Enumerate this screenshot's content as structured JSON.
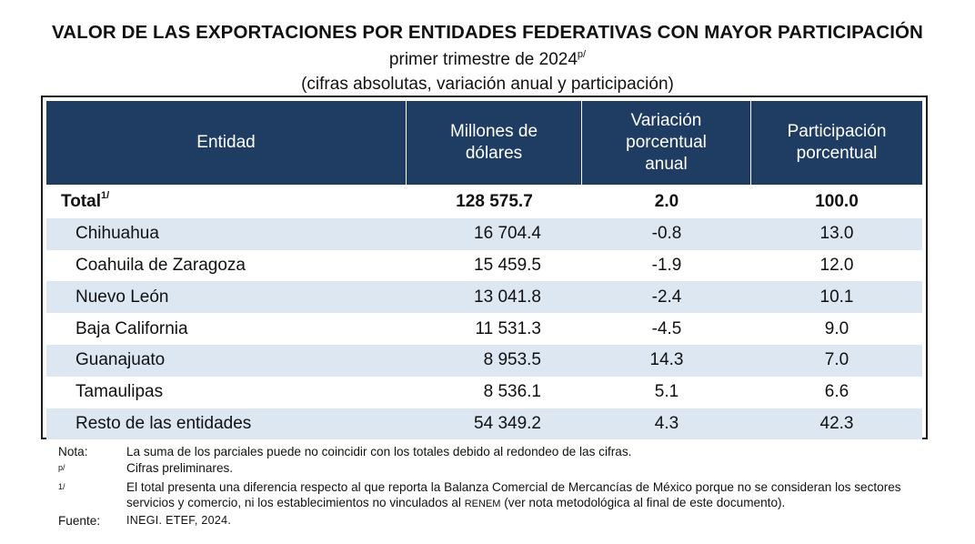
{
  "title": "VALOR DE LAS EXPORTACIONES POR ENTIDADES FEDERATIVAS CON MAYOR PARTICIPACIÓN",
  "subtitle": "primer trimestre de 2024",
  "subtitle_mark": "p/",
  "subtitle2": "(cifras absolutas, variación anual y participación)",
  "table": {
    "headers": {
      "entity": "Entidad",
      "millions": "Millones de\ndólares",
      "variation": "Variación\nporcentual\nanual",
      "share": "Participación\nporcentual"
    },
    "total": {
      "name": "Total",
      "mark": "1/",
      "millions": "128 575.7",
      "variation": "2.0",
      "share": "100.0"
    },
    "rows": [
      {
        "name": "Chihuahua",
        "millions": "16 704.4",
        "variation": "-0.8",
        "share": "13.0"
      },
      {
        "name": "Coahuila de Zaragoza",
        "millions": "15 459.5",
        "variation": "-1.9",
        "share": "12.0"
      },
      {
        "name": "Nuevo León",
        "millions": "13 041.8",
        "variation": "-2.4",
        "share": "10.1"
      },
      {
        "name": "Baja California",
        "millions": "11 531.3",
        "variation": "-4.5",
        "share": "9.0"
      },
      {
        "name": "Guanajuato",
        "millions": "8 953.5",
        "variation": "14.3",
        "share": "7.0"
      },
      {
        "name": "Tamaulipas",
        "millions": "8 536.1",
        "variation": "5.1",
        "share": "6.6"
      },
      {
        "name": "Resto de las entidades",
        "millions": "54 349.2",
        "variation": "4.3",
        "share": "42.3"
      }
    ]
  },
  "notes": {
    "nota_label": "Nota:",
    "nota_text": "La suma de los parciales puede no coincidir con los totales debido al redondeo de las cifras.",
    "p_label": "p/",
    "p_text": "Cifras preliminares.",
    "one_label": "1/",
    "one_text_a": "El total presenta una diferencia respecto al que reporta la Balanza Comercial de Mercancías de México porque no se consideran los sectores servicios y comercio, ni los establecimientos no vinculados al ",
    "one_text_abbr": "RENEM",
    "one_text_b": " (ver nota metodológica al final de este documento).",
    "source_label": "Fuente:",
    "source_text": "INEGI. ETEF, 2024."
  }
}
